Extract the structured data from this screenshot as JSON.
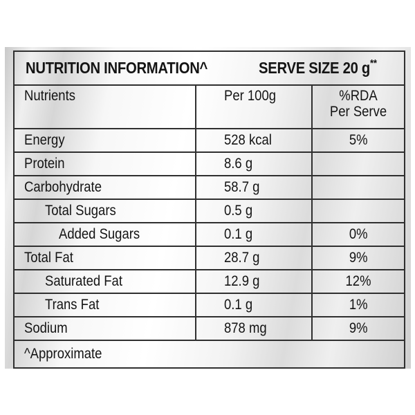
{
  "label": {
    "title": "NUTRITION INFORMATION^",
    "serve_size": "SERVE SIZE 20 g",
    "serve_size_mark": "**",
    "columns": {
      "nutrients": "Nutrients",
      "per_100g": "Per 100g",
      "rda_line1": "%RDA",
      "rda_line2": "Per Serve"
    },
    "rows": [
      {
        "name": "Energy",
        "per_100g": "528 kcal",
        "rda": "5%"
      },
      {
        "name": "Protein",
        "per_100g": "8.6 g",
        "rda": ""
      },
      {
        "name": "Carbohydrate",
        "per_100g": "58.7 g",
        "rda": ""
      },
      {
        "name": "Total Sugars",
        "per_100g": "0.5 g",
        "rda": ""
      },
      {
        "name": "Added Sugars",
        "per_100g": "0.1 g",
        "rda": "0%"
      },
      {
        "name": "Total Fat",
        "per_100g": "28.7 g",
        "rda": "9%"
      },
      {
        "name": "Saturated Fat",
        "per_100g": "12.9 g",
        "rda": "12%"
      },
      {
        "name": "Trans Fat",
        "per_100g": "0.1 g",
        "rda": "1%"
      },
      {
        "name": "Sodium",
        "per_100g": "878 mg",
        "rda": "9%"
      }
    ],
    "footnote": "^Approximate"
  }
}
